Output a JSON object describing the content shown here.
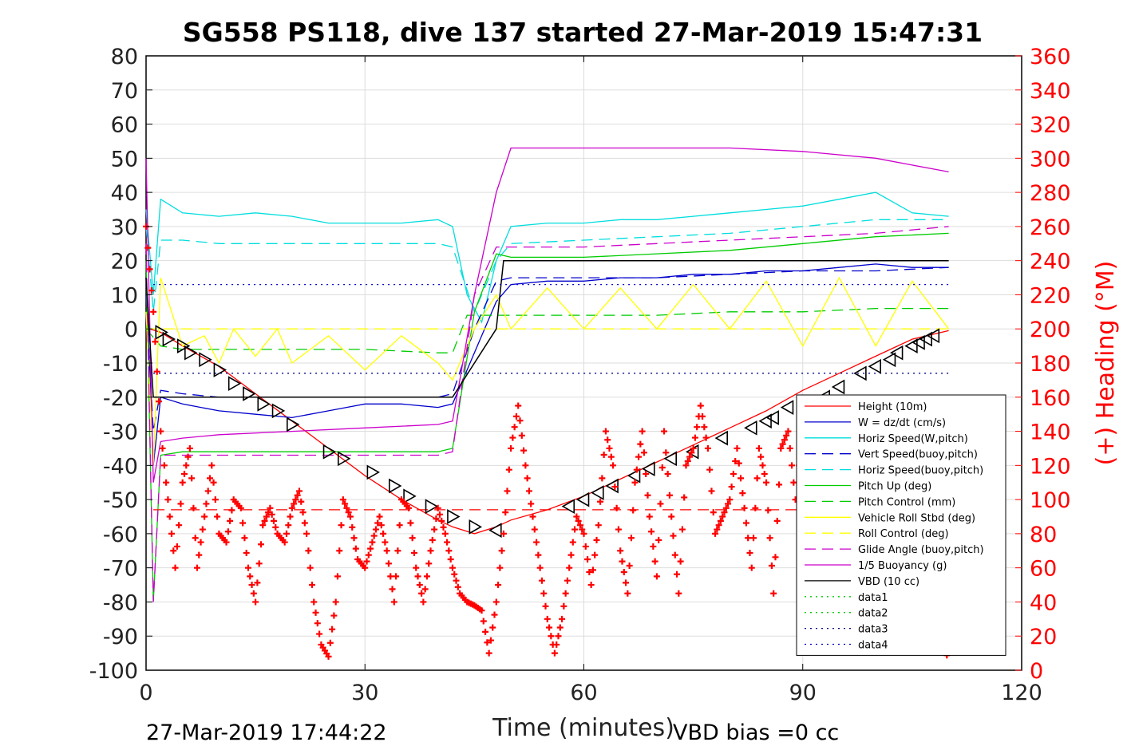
{
  "title": "SG558 PS118, dive 137 started 27-Mar-2019 15:47:31",
  "footer": {
    "left": "27-Mar-2019 17:44:22",
    "right": "VBD bias =0 cc"
  },
  "chart_data": {
    "type": "line",
    "title": "SG558 PS118, dive 137 started 27-Mar-2019 15:47:31",
    "xlabel": "Time (minutes)",
    "ylabel": "",
    "ylabel_right": "(+) Heading (°M)",
    "xlim": [
      0,
      120
    ],
    "ylim": [
      -100,
      80
    ],
    "ylim_right": [
      0,
      360
    ],
    "x_ticks": [
      "0",
      "30",
      "60",
      "90",
      "120"
    ],
    "y_ticks": [
      "80",
      "70",
      "60",
      "50",
      "40",
      "30",
      "20",
      "10",
      "0",
      "-10",
      "-20",
      "-30",
      "-40",
      "-50",
      "-60",
      "-70",
      "-80",
      "-90",
      "-100"
    ],
    "y_ticks_right": [
      "360",
      "340",
      "320",
      "300",
      "280",
      "260",
      "240",
      "220",
      "200",
      "180",
      "160",
      "140",
      "120",
      "100",
      "80",
      "60",
      "40",
      "20",
      "0"
    ],
    "grid": true,
    "legend_position": "right, lower half",
    "legend": [
      {
        "label": "Height (10m)",
        "color": "#ff0000",
        "dash": "solid"
      },
      {
        "label": "W = dz/dt (cm/s)",
        "color": "#0000cc",
        "dash": "solid"
      },
      {
        "label": "Horiz Speed(W,pitch)",
        "color": "#00dddd",
        "dash": "solid"
      },
      {
        "label": "Vert Speed(buoy,pitch)",
        "color": "#0000cc",
        "dash": "dashed"
      },
      {
        "label": "Horiz Speed(buoy,pitch)",
        "color": "#00dddd",
        "dash": "dashed"
      },
      {
        "label": "Pitch Up (deg)",
        "color": "#00cc00",
        "dash": "solid"
      },
      {
        "label": "Pitch Control (mm)",
        "color": "#00cc00",
        "dash": "dashed"
      },
      {
        "label": "Vehicle Roll Stbd (deg)",
        "color": "#ffff00",
        "dash": "solid"
      },
      {
        "label": "Roll Control (deg)",
        "color": "#ffff00",
        "dash": "dashed"
      },
      {
        "label": "Glide Angle (buoy,pitch)",
        "color": "#cc00cc",
        "dash": "dashed"
      },
      {
        "label": "1/5 Buoyancy (g)",
        "color": "#cc00cc",
        "dash": "solid"
      },
      {
        "label": "VBD (10 cc)",
        "color": "#000000",
        "dash": "solid"
      },
      {
        "label": "data1",
        "color": "#00cc00",
        "dash": "dotted"
      },
      {
        "label": "data2",
        "color": "#00cc00",
        "dash": "dotted"
      },
      {
        "label": "data3",
        "color": "#000088",
        "dash": "dotted"
      },
      {
        "label": "data4",
        "color": "#0000cc",
        "dash": "dotted"
      }
    ],
    "series": [
      {
        "name": "Height (10m)",
        "color": "#ff0000",
        "dash": "solid",
        "x": [
          0.5,
          2,
          5,
          10,
          15,
          20,
          25,
          30,
          35,
          40,
          42,
          45,
          48,
          50,
          55,
          60,
          65,
          70,
          75,
          80,
          85,
          90,
          95,
          100,
          105,
          110
        ],
        "y": [
          0,
          -1,
          -5,
          -11,
          -19,
          -27,
          -35,
          -43,
          -50,
          -56,
          -58,
          -60,
          -58,
          -56,
          -53,
          -49,
          -44,
          -39,
          -34,
          -29,
          -24,
          -18,
          -13,
          -8,
          -3,
          -0.5
        ]
      },
      {
        "name": "W = dz/dt (cm/s)",
        "color": "#0000cc",
        "dash": "solid",
        "x": [
          0,
          1,
          2,
          5,
          10,
          15,
          20,
          25,
          30,
          35,
          40,
          42,
          44,
          46,
          48,
          50,
          55,
          60,
          65,
          70,
          75,
          80,
          85,
          90,
          95,
          100,
          105,
          110
        ],
        "y": [
          15,
          -40,
          -20,
          -22,
          -24,
          -25,
          -26,
          -24,
          -22,
          -22,
          -23,
          -22,
          -12,
          -2,
          8,
          13,
          14,
          14,
          15,
          15,
          16,
          16,
          17,
          17,
          18,
          19,
          18,
          18
        ]
      },
      {
        "name": "Horiz Speed(W,pitch)",
        "color": "#00dddd",
        "dash": "solid",
        "x": [
          0,
          1,
          2,
          5,
          10,
          15,
          20,
          25,
          30,
          35,
          40,
          42,
          44,
          46,
          48,
          50,
          55,
          60,
          65,
          70,
          75,
          80,
          85,
          90,
          95,
          100,
          105,
          110
        ],
        "y": [
          35,
          10,
          38,
          34,
          33,
          34,
          33,
          31,
          31,
          31,
          32,
          30,
          10,
          2,
          20,
          30,
          31,
          31,
          32,
          32,
          33,
          34,
          35,
          36,
          38,
          40,
          34,
          33
        ]
      },
      {
        "name": "Vert Speed(buoy,pitch)",
        "color": "#0000cc",
        "dash": "dashed",
        "x": [
          0,
          1,
          2,
          5,
          10,
          20,
          30,
          40,
          42,
          45,
          48,
          50,
          60,
          70,
          80,
          90,
          100,
          110
        ],
        "y": [
          10,
          -30,
          -18,
          -19,
          -20,
          -20,
          -20,
          -20,
          -19,
          0,
          14,
          15,
          15,
          15,
          16,
          17,
          17,
          18
        ]
      },
      {
        "name": "Horiz Speed(buoy,pitch)",
        "color": "#00dddd",
        "dash": "dashed",
        "x": [
          0,
          1,
          2,
          5,
          10,
          20,
          30,
          40,
          42,
          45,
          48,
          50,
          60,
          70,
          80,
          90,
          100,
          110
        ],
        "y": [
          30,
          5,
          26,
          26,
          25,
          25,
          25,
          25,
          24,
          5,
          20,
          25,
          26,
          27,
          28,
          30,
          32,
          32
        ]
      },
      {
        "name": "Pitch Up (deg)",
        "color": "#00cc00",
        "dash": "solid",
        "x": [
          0,
          1,
          2,
          5,
          10,
          20,
          30,
          40,
          42,
          45,
          48,
          50,
          60,
          70,
          80,
          90,
          100,
          110
        ],
        "y": [
          20,
          -80,
          -37,
          -36,
          -36,
          -36,
          -36,
          -36,
          -35,
          5,
          22,
          21,
          21,
          22,
          23,
          25,
          27,
          28
        ]
      },
      {
        "name": "Pitch Control (mm)",
        "color": "#00cc00",
        "dash": "dashed",
        "x": [
          0,
          2,
          5,
          10,
          20,
          30,
          40,
          42,
          44,
          48,
          50,
          60,
          70,
          80,
          90,
          100,
          110
        ],
        "y": [
          0,
          -5,
          -6,
          -6,
          -6,
          -6,
          -7,
          -7,
          4,
          4,
          4,
          4,
          4,
          5,
          5,
          6,
          6
        ]
      },
      {
        "name": "Vehicle Roll Stbd (deg)",
        "color": "#ffff00",
        "dash": "solid",
        "x": [
          0,
          1,
          2,
          5,
          8,
          10,
          12,
          15,
          18,
          20,
          25,
          30,
          35,
          40,
          42,
          45,
          48,
          50,
          55,
          60,
          65,
          70,
          75,
          80,
          85,
          90,
          95,
          100,
          105,
          110
        ],
        "y": [
          5,
          -40,
          15,
          -5,
          -2,
          -10,
          0,
          -8,
          0,
          -10,
          -2,
          -12,
          -2,
          -10,
          -15,
          0,
          10,
          0,
          12,
          0,
          12,
          0,
          13,
          0,
          14,
          -5,
          15,
          -5,
          14,
          0
        ]
      },
      {
        "name": "Roll Control (deg)",
        "color": "#ffff00",
        "dash": "dashed",
        "x": [
          0,
          2,
          10,
          20,
          30,
          40,
          42,
          45,
          50,
          60,
          70,
          80,
          90,
          100,
          110
        ],
        "y": [
          0,
          0,
          0,
          0,
          0,
          0,
          0,
          0,
          0,
          0,
          0,
          0,
          0,
          0,
          0
        ]
      },
      {
        "name": "Glide Angle (buoy,pitch)",
        "color": "#cc00cc",
        "dash": "dashed",
        "x": [
          0,
          1,
          2,
          5,
          10,
          20,
          30,
          40,
          42,
          45,
          48,
          50,
          60,
          70,
          80,
          90,
          100,
          110
        ],
        "y": [
          25,
          -80,
          -37,
          -37,
          -37,
          -37,
          -37,
          -37,
          -36,
          10,
          24,
          24,
          24,
          25,
          26,
          27,
          28,
          30
        ]
      },
      {
        "name": "1/5 Buoyancy (g)",
        "color": "#cc00cc",
        "dash": "solid",
        "x": [
          0,
          1,
          2,
          5,
          10,
          20,
          30,
          40,
          42,
          43,
          45,
          48,
          50,
          60,
          70,
          80,
          90,
          100,
          105,
          110
        ],
        "y": [
          50,
          -45,
          -33,
          -32,
          -31,
          -30,
          -29,
          -28,
          -27,
          -15,
          10,
          40,
          53,
          53,
          53,
          53,
          52,
          50,
          48,
          46
        ]
      },
      {
        "name": "VBD (10 cc)",
        "color": "#000000",
        "dash": "solid",
        "x": [
          0,
          1,
          2,
          42,
          48,
          49,
          110
        ],
        "y": [
          15,
          -20,
          -20,
          -20,
          0,
          20,
          20
        ]
      },
      {
        "name": "data3",
        "color": "#000088",
        "dash": "dotted",
        "x": [
          1,
          110
        ],
        "y": [
          -13,
          -13
        ]
      },
      {
        "name": "data4",
        "color": "#0000cc",
        "dash": "dotted",
        "x": [
          1,
          110
        ],
        "y": [
          13,
          13
        ]
      },
      {
        "name": "data1",
        "color": "#ff0000",
        "dash": "dashed",
        "x": [
          1,
          110
        ],
        "y": [
          -53,
          -53
        ]
      }
    ],
    "markers": {
      "name": "Height (10m) markers",
      "color": "#000000",
      "x": [
        2,
        3,
        5,
        6,
        8,
        10,
        12,
        14,
        16,
        18,
        20,
        25,
        27,
        31,
        34,
        36,
        39,
        42,
        45,
        48,
        58,
        60,
        62,
        64,
        67,
        69,
        72,
        75,
        79,
        83,
        85,
        86,
        88,
        93,
        95,
        98,
        100,
        102,
        103,
        105,
        106,
        107,
        108
      ],
      "y": [
        -1,
        -3,
        -5,
        -7,
        -9,
        -12,
        -16,
        -19,
        -22,
        -24,
        -28,
        -36,
        -38,
        -42,
        -46,
        -49,
        -52,
        -55,
        -58,
        -59,
        -52,
        -50,
        -48,
        -46,
        -43,
        -41,
        -38,
        -36,
        -32,
        -29,
        -27,
        -26,
        -23,
        -20,
        -17,
        -13,
        -11,
        -9,
        -7,
        -5,
        -4,
        -3,
        -2
      ]
    },
    "heading": {
      "name": "(+) Heading (°M)",
      "color": "#ff0000",
      "axis": "right",
      "x": [
        0,
        1,
        2,
        3,
        4,
        5,
        6,
        7,
        8,
        9,
        10,
        11,
        12,
        13,
        14,
        15,
        16,
        17,
        18,
        19,
        20,
        21,
        22,
        23,
        24,
        25,
        26,
        27,
        28,
        29,
        30,
        31,
        32,
        33,
        34,
        35,
        36,
        37,
        38,
        39,
        40,
        41,
        42,
        43,
        44,
        45,
        46,
        47,
        48,
        49,
        50,
        51,
        52,
        53,
        54,
        55,
        56,
        57,
        58,
        59,
        60,
        61,
        62,
        63,
        64,
        65,
        66,
        67,
        68,
        69,
        70,
        71,
        72,
        73,
        74,
        75,
        76,
        77,
        78,
        79,
        80,
        81,
        82,
        83,
        84,
        85,
        86,
        87,
        88,
        89,
        90,
        91,
        92,
        93,
        94,
        95,
        96,
        97,
        98,
        99,
        100,
        101,
        102,
        103,
        104,
        105,
        106,
        107,
        108,
        109,
        110
      ],
      "y": [
        260,
        210,
        140,
        100,
        60,
        110,
        130,
        60,
        90,
        120,
        80,
        75,
        100,
        95,
        60,
        40,
        85,
        95,
        80,
        75,
        95,
        105,
        80,
        40,
        15,
        8,
        40,
        100,
        90,
        65,
        60,
        75,
        90,
        70,
        40,
        100,
        95,
        60,
        40,
        70,
        95,
        80,
        60,
        45,
        40,
        38,
        35,
        10,
        40,
        80,
        130,
        155,
        120,
        90,
        60,
        30,
        10,
        30,
        60,
        90,
        80,
        50,
        85,
        140,
        120,
        70,
        45,
        110,
        140,
        90,
        55,
        140,
        90,
        45,
        120,
        130,
        155,
        130,
        80,
        90,
        100,
        130,
        95,
        60,
        130,
        110,
        45,
        130,
        140,
        100,
        140,
        155,
        120,
        80,
        60,
        110,
        130,
        100,
        80,
        60,
        90,
        120,
        100,
        70,
        50,
        80,
        120,
        100,
        60,
        20,
        5
      ]
    }
  }
}
